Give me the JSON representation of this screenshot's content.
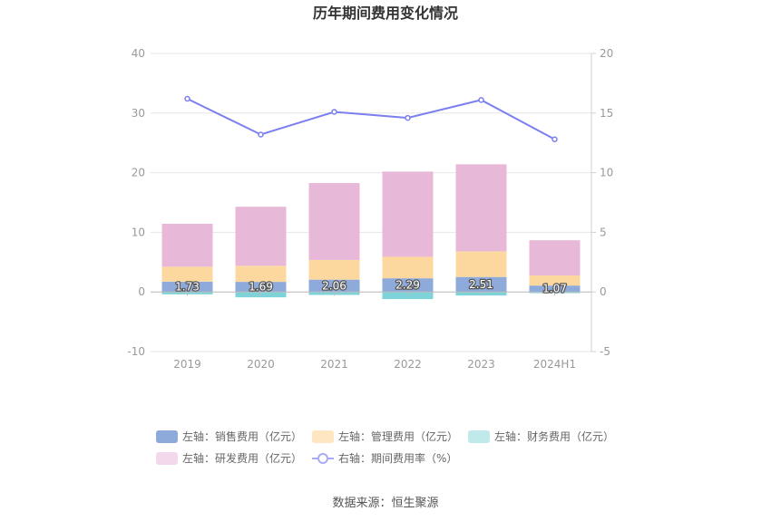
{
  "chart_data": {
    "type": "bar+line",
    "title": "历年期间费用变化情况",
    "categories": [
      "2019",
      "2020",
      "2021",
      "2022",
      "2023",
      "2024H1"
    ],
    "left_axis": {
      "min": -10,
      "max": 40,
      "ticks": [
        -10,
        0,
        10,
        20,
        30,
        40
      ]
    },
    "right_axis": {
      "min": -5,
      "max": 20,
      "ticks": [
        -5,
        0,
        5,
        10,
        15,
        20
      ]
    },
    "series": [
      {
        "name": "左轴：销售费用（亿元）",
        "axis": "left",
        "kind": "bar",
        "color": "#8eaadb",
        "values": [
          1.73,
          1.69,
          2.06,
          2.29,
          2.51,
          1.07
        ],
        "show_labels": true
      },
      {
        "name": "左轴：管理费用（亿元）",
        "axis": "left",
        "kind": "bar",
        "color": "#fdd89e",
        "values": [
          2.5,
          2.7,
          3.3,
          3.6,
          4.3,
          1.7
        ]
      },
      {
        "name": "左轴：财务费用（亿元）",
        "axis": "left",
        "kind": "bar",
        "color": "#7dd3d8",
        "values": [
          -0.4,
          -0.9,
          -0.5,
          -1.2,
          -0.6,
          -0.2
        ]
      },
      {
        "name": "左轴：研发费用（亿元）",
        "axis": "left",
        "kind": "bar",
        "color": "#e8b8d8",
        "values": [
          7.2,
          9.9,
          12.9,
          14.3,
          14.6,
          5.9
        ]
      },
      {
        "name": "右轴：期间费用率（%）",
        "axis": "right",
        "kind": "line",
        "color": "#7b7fef",
        "values": [
          16.2,
          13.2,
          15.1,
          14.6,
          16.1,
          12.8
        ]
      }
    ],
    "legend": [
      {
        "label": "左轴：销售费用（亿元）",
        "color": "#8eaadb",
        "kind": "box"
      },
      {
        "label": "左轴：管理费用（亿元）",
        "color": "#fde6c0",
        "kind": "box"
      },
      {
        "label": "左轴：财务费用（亿元）",
        "color": "#bfe9ea",
        "kind": "box"
      },
      {
        "label": "左轴：研发费用（亿元）",
        "color": "#f3d8eb",
        "kind": "box"
      },
      {
        "label": "右轴：期间费用率（%）",
        "color": "#a9abf5",
        "kind": "line"
      }
    ]
  },
  "source": "数据来源：恒生聚源"
}
